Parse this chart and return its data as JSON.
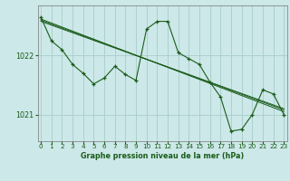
{
  "background_color": "#cce8e8",
  "grid_color": "#aacccc",
  "line_color": "#1a5c1a",
  "title": "Graphe pression niveau de la mer (hPa)",
  "x_ticks": [
    0,
    1,
    2,
    3,
    4,
    5,
    6,
    7,
    8,
    9,
    10,
    11,
    12,
    13,
    14,
    15,
    16,
    17,
    18,
    19,
    20,
    21,
    22,
    23
  ],
  "y_ticks": [
    1021,
    1022
  ],
  "y_lim": [
    1020.55,
    1022.85
  ],
  "x_lim": [
    -0.3,
    23.3
  ],
  "main_series": [
    1022.65,
    1022.25,
    1022.1,
    1021.85,
    1021.7,
    1021.52,
    1021.62,
    1021.82,
    1021.68,
    1021.58,
    1022.45,
    1022.58,
    1022.58,
    1022.05,
    1021.95,
    1021.85,
    1021.55,
    1021.3,
    1020.72,
    1020.75,
    1021.0,
    1021.42,
    1021.35,
    1021.0
  ],
  "trend_lines": [
    {
      "x0": 0,
      "y0": 1022.62,
      "x1": 23,
      "y1": 1021.05
    },
    {
      "x0": 0,
      "y0": 1022.6,
      "x1": 23,
      "y1": 1021.08
    },
    {
      "x0": 0,
      "y0": 1022.58,
      "x1": 23,
      "y1": 1021.1
    }
  ]
}
